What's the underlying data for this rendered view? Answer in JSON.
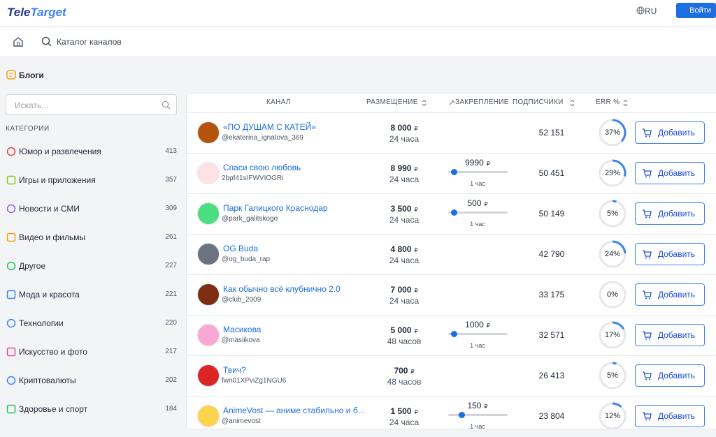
{
  "header": {
    "logo_left": "Tele",
    "logo_right": "Target",
    "language": "RU",
    "login": "Войти"
  },
  "breadcrumb": {
    "catalog": "Каталог каналов"
  },
  "sidebar": {
    "section": "Блоги",
    "search_placeholder": "Искать...",
    "categories_title": "КАТЕГОРИИ",
    "categories": [
      {
        "name": "Юмор и развлечения",
        "count": "413"
      },
      {
        "name": "Игры и приложения",
        "count": "357"
      },
      {
        "name": "Новости и СМИ",
        "count": "309"
      },
      {
        "name": "Видео и фильмы",
        "count": "261"
      },
      {
        "name": "Другое",
        "count": "227"
      },
      {
        "name": "Мода и красота",
        "count": "221"
      },
      {
        "name": "Технологии",
        "count": "220"
      },
      {
        "name": "Искусство и фото",
        "count": "217"
      },
      {
        "name": "Криптовалюты",
        "count": "202"
      },
      {
        "name": "Здоровье и спорт",
        "count": "184"
      }
    ]
  },
  "table": {
    "columns": {
      "channel": "КАНАЛ",
      "placement": "РАЗМЕЩЕНИЕ",
      "pin": "ЗАКРЕПЛЕНИЕ",
      "subscribers": "ПОДПИСЧИКИ",
      "err": "ERR %"
    },
    "currency": "₽",
    "add_button": "Добавить",
    "rows": [
      {
        "name": "«ПО ДУШАМ С КАТЕЙ»",
        "handle": "@ekaterina_ignatova_369",
        "price": "8 000",
        "duration": "24 часа",
        "subscribers": "52 151",
        "err": {
          "value": 37,
          "label": "37%"
        }
      },
      {
        "name": "Спаси свою любовь",
        "handle": "2bpf41sIFWVIOGRi",
        "price": "8 990",
        "duration": "24 часа",
        "pin_price": "9990",
        "pin_duration": "1 час",
        "subscribers": "50 451",
        "err": {
          "value": 29,
          "label": "29%"
        }
      },
      {
        "name": "Парк Галицкого Краснодар",
        "handle": "@park_galitskogo",
        "price": "3 500",
        "duration": "24 часа",
        "pin_price": "500",
        "pin_duration": "1 час",
        "subscribers": "50 149",
        "err": {
          "value": 5,
          "label": "5%"
        }
      },
      {
        "name": "OG Buda",
        "handle": "@og_buda_rap",
        "price": "4 800",
        "duration": "24 часа",
        "subscribers": "42 790",
        "err": {
          "value": 24,
          "label": "24%"
        }
      },
      {
        "name": "Как обычно всё клубнично 2.0",
        "handle": "@club_2009",
        "price": "7 000",
        "duration": "24 часа",
        "subscribers": "33 175",
        "err": {
          "value": 0,
          "label": "0%"
        }
      },
      {
        "name": "Масикова",
        "handle": "@masiikova",
        "price": "5 000",
        "duration": "48 часов",
        "pin_price": "1000",
        "pin_duration": "1 час",
        "subscribers": "32 571",
        "err": {
          "value": 17,
          "label": "17%"
        }
      },
      {
        "name": "Твич?",
        "handle": "fwn01XPviZg1NGU6",
        "price": "700",
        "duration": "48 часов",
        "subscribers": "26 413",
        "err": {
          "value": 5,
          "label": "5%"
        }
      },
      {
        "name": "AnimeVost — аниме стабильно и б...",
        "handle": "@animevost",
        "price": "1 500",
        "duration": "24 часа",
        "pin_price": "150",
        "pin_duration": "1 час",
        "subscribers": "23 804",
        "err": {
          "value": 12,
          "label": "12%"
        }
      }
    ]
  }
}
